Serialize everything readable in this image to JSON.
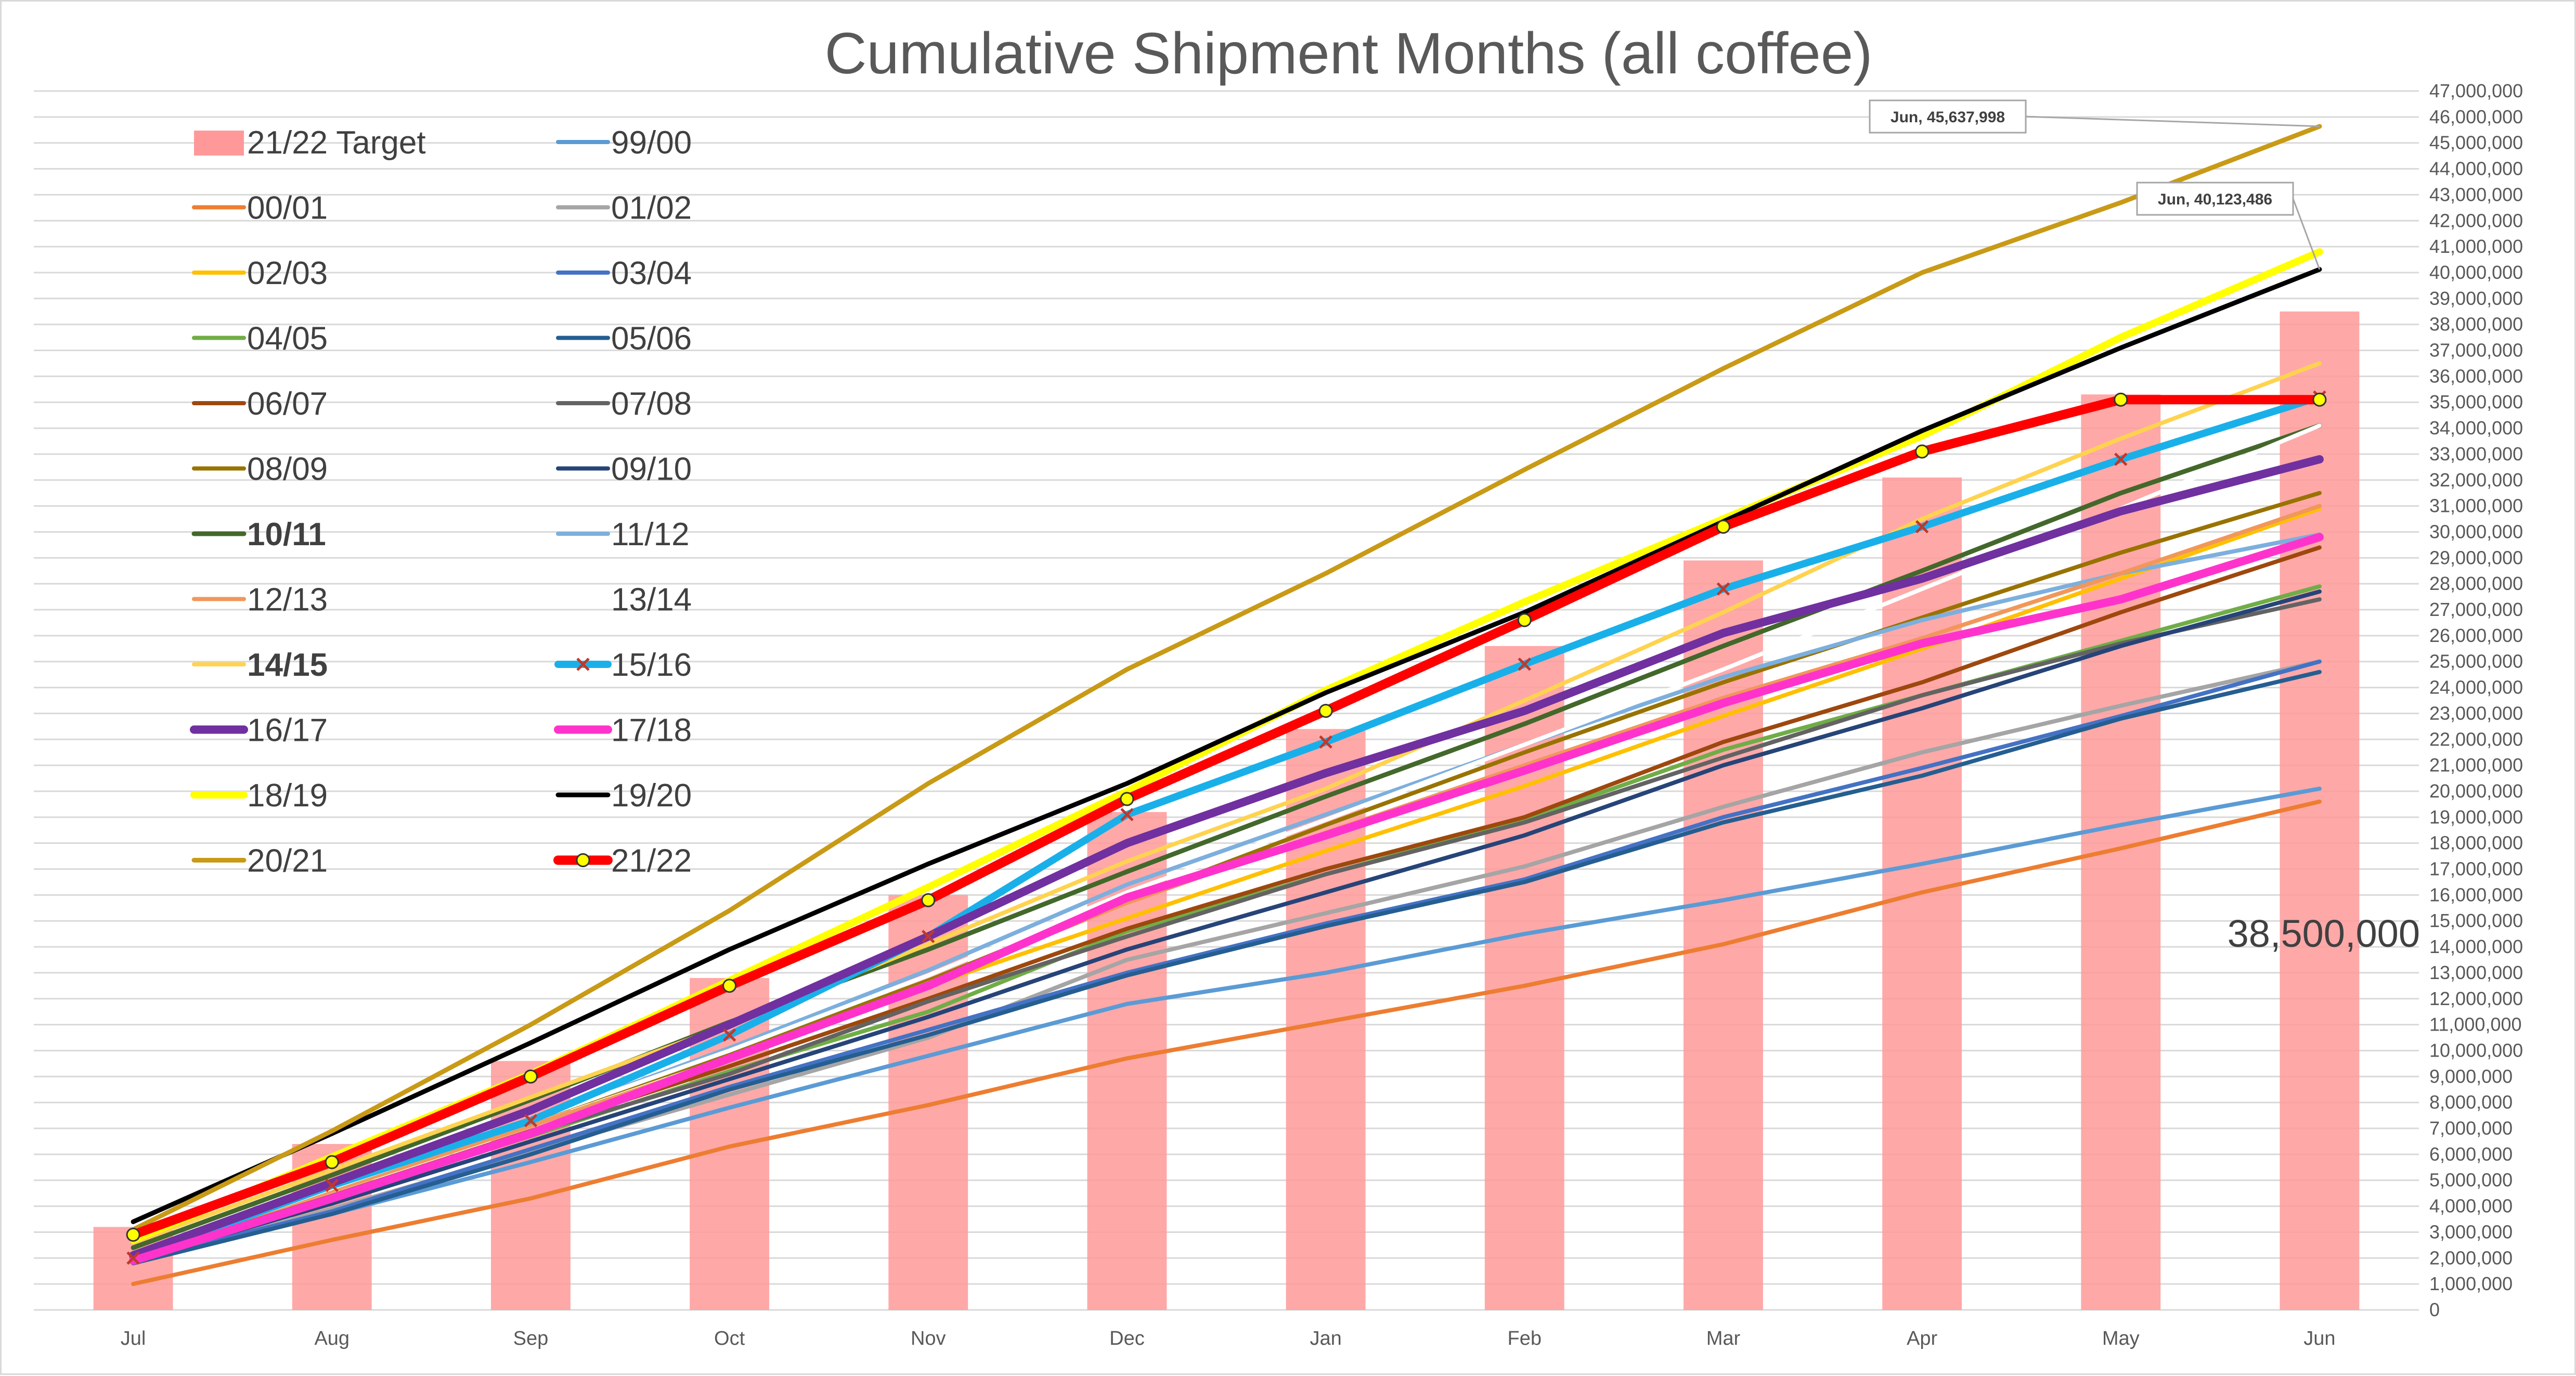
{
  "chart_data": {
    "type": "bar",
    "title": "Cumulative Shipment Months (all coffee)",
    "categories": [
      "Jul",
      "Aug",
      "Sep",
      "Oct",
      "Nov",
      "Dec",
      "Jan",
      "Feb",
      "Mar",
      "Apr",
      "May",
      "Jun"
    ],
    "ylim": [
      0,
      47000000
    ],
    "y_tick_step": 1000000,
    "grid": true,
    "legend_position": "top-left",
    "bar_series": {
      "name": "21/22 Target",
      "color": "#ff9999",
      "values": [
        3200000,
        6400000,
        9600000,
        12800000,
        16000000,
        19200000,
        22400000,
        25600000,
        28900000,
        32100000,
        35300000,
        38500000
      ],
      "end_label": "38,500,000"
    },
    "series": [
      {
        "name": "99/00",
        "color": "#5b9bd5",
        "values": [
          1900000,
          3700000,
          5700000,
          7800000,
          9800000,
          11800000,
          13000000,
          14500000,
          15800000,
          17200000,
          18700000,
          20100000
        ]
      },
      {
        "name": "00/01",
        "color": "#ed7d31",
        "values": [
          1000000,
          2700000,
          4300000,
          6300000,
          7900000,
          9700000,
          11100000,
          12500000,
          14100000,
          16100000,
          17800000,
          19600000
        ]
      },
      {
        "name": "01/02",
        "color": "#a5a5a5",
        "values": [
          1800000,
          3900000,
          6100000,
          8300000,
          10500000,
          13500000,
          15300000,
          17100000,
          19400000,
          21500000,
          23300000,
          25000000
        ]
      },
      {
        "name": "02/03",
        "color": "#ffc000",
        "values": [
          2200000,
          4800000,
          7300000,
          9900000,
          12500000,
          15100000,
          17700000,
          20200000,
          22900000,
          25500000,
          28200000,
          30900000
        ]
      },
      {
        "name": "03/04",
        "color": "#4472c4",
        "values": [
          1900000,
          3800000,
          6200000,
          8600000,
          10800000,
          13000000,
          14900000,
          16600000,
          19000000,
          20900000,
          22900000,
          25000000
        ]
      },
      {
        "name": "04/05",
        "color": "#70ad47",
        "values": [
          1800000,
          4300000,
          6700000,
          9200000,
          11500000,
          14600000,
          16800000,
          18900000,
          21600000,
          23700000,
          25800000,
          27900000
        ]
      },
      {
        "name": "05/06",
        "color": "#255e91",
        "values": [
          1800000,
          3700000,
          6000000,
          8500000,
          10600000,
          12900000,
          14800000,
          16500000,
          18800000,
          20600000,
          22800000,
          24600000
        ]
      },
      {
        "name": "06/07",
        "color": "#9e480e",
        "values": [
          2000000,
          4400000,
          6900000,
          9400000,
          12000000,
          14700000,
          17000000,
          19000000,
          21900000,
          24200000,
          26900000,
          29400000
        ]
      },
      {
        "name": "07/08",
        "color": "#636363",
        "values": [
          1900000,
          4300000,
          6800000,
          9100000,
          11900000,
          14400000,
          16800000,
          18800000,
          21300000,
          23700000,
          25700000,
          27400000
        ]
      },
      {
        "name": "08/09",
        "color": "#997300",
        "values": [
          2200000,
          4700000,
          7300000,
          9900000,
          12700000,
          15800000,
          18700000,
          21500000,
          24200000,
          26700000,
          29200000,
          31500000
        ]
      },
      {
        "name": "09/10",
        "color": "#264478",
        "values": [
          1900000,
          4100000,
          6500000,
          8900000,
          11300000,
          13900000,
          16100000,
          18300000,
          21000000,
          23200000,
          25600000,
          27700000
        ]
      },
      {
        "name": "10/11",
        "color": "#43682b",
        "bold": true,
        "values": [
          2400000,
          5200000,
          8100000,
          11100000,
          13900000,
          16900000,
          19800000,
          22600000,
          25600000,
          28500000,
          31500000,
          34100000
        ]
      },
      {
        "name": "11/12",
        "color": "#7cafdd",
        "values": [
          2200000,
          4700000,
          7300000,
          10100000,
          13100000,
          16400000,
          19100000,
          21800000,
          24400000,
          26600000,
          28400000,
          29900000
        ]
      },
      {
        "name": "12/13",
        "color": "#f1975a",
        "values": [
          2100000,
          4600000,
          7100000,
          9700000,
          12600000,
          15700000,
          18400000,
          21000000,
          23600000,
          25900000,
          28400000,
          31000000
        ]
      },
      {
        "name": "13/14",
        "color": "#ffffff",
        "values": [
          2000000,
          4700000,
          7300000,
          10000000,
          12900000,
          16100000,
          18900000,
          21800000,
          24700000,
          27800000,
          30900000,
          34100000
        ]
      },
      {
        "name": "14/15",
        "color": "#ffd34f",
        "bold": true,
        "values": [
          2600000,
          5400000,
          8200000,
          11000000,
          14100000,
          17300000,
          20100000,
          23500000,
          26900000,
          30500000,
          33600000,
          36500000
        ]
      },
      {
        "name": "15/16",
        "color": "#19b0ea",
        "marker": "x",
        "values": [
          2000000,
          4800000,
          7300000,
          10600000,
          14400000,
          19100000,
          21900000,
          24900000,
          27800000,
          30200000,
          32800000,
          35200000
        ]
      },
      {
        "name": "16/17",
        "color": "#7030a0",
        "values": [
          2100000,
          4900000,
          7700000,
          11000000,
          14400000,
          18000000,
          20700000,
          23100000,
          26100000,
          28200000,
          30800000,
          32800000
        ]
      },
      {
        "name": "17/18",
        "color": "#ff33cc",
        "values": [
          1900000,
          4300000,
          6800000,
          9700000,
          12500000,
          15900000,
          18300000,
          20800000,
          23400000,
          25700000,
          27400000,
          29800000
        ]
      },
      {
        "name": "18/19",
        "color": "#ffff00",
        "values": [
          2700000,
          5900000,
          9100000,
          12700000,
          16300000,
          20000000,
          23900000,
          27300000,
          30500000,
          33700000,
          37500000,
          40800000
        ]
      },
      {
        "name": "19/20",
        "color": "#000000",
        "values": [
          3400000,
          6800000,
          10300000,
          13900000,
          17200000,
          20300000,
          23800000,
          26900000,
          30400000,
          33900000,
          37100000,
          40123486
        ]
      },
      {
        "name": "20/21",
        "color": "#c99a16",
        "values": [
          3100000,
          6900000,
          11000000,
          15400000,
          20300000,
          24700000,
          28400000,
          32400000,
          36300000,
          40000000,
          42700000,
          45637998
        ]
      },
      {
        "name": "21/22",
        "color": "#ff0000",
        "marker": "circle",
        "values": [
          2900000,
          5700000,
          9000000,
          12500000,
          15800000,
          19700000,
          23100000,
          26600000,
          30200000,
          33100000,
          35100000,
          35100000
        ]
      }
    ],
    "legend_columns": [
      [
        "21/22 Target",
        "00/01",
        "02/03",
        "04/05",
        "06/07",
        "08/09",
        "10/11",
        "12/13",
        "14/15",
        "16/17",
        "18/19",
        "20/21"
      ],
      [
        "99/00",
        "01/02",
        "03/04",
        "05/06",
        "07/08",
        "09/10",
        "11/12",
        "13/14",
        "15/16",
        "17/18",
        "19/20",
        "21/22"
      ]
    ],
    "annotations": [
      {
        "text": "Jun, 45,637,998",
        "series": "20/21",
        "category": "Jun",
        "value": 45637998
      },
      {
        "text": "Jun, 40,123,486",
        "series": "19/20",
        "category": "Jun",
        "value": 40123486
      }
    ]
  }
}
